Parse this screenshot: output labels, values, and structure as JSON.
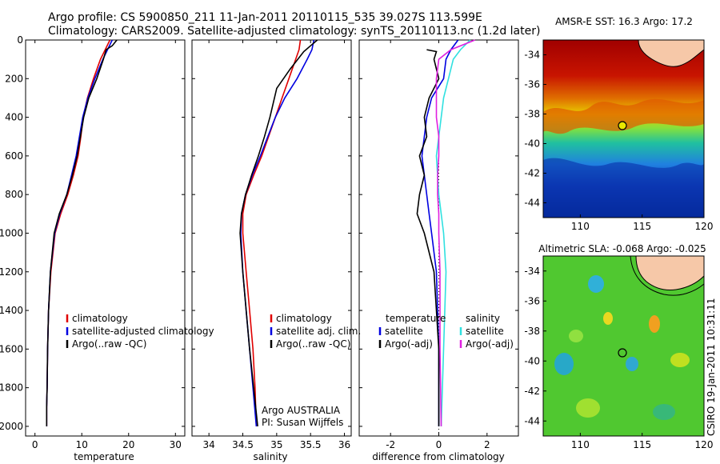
{
  "header": {
    "line1": "Argo profile: CS 5900850_211 11-Jan-2011 20110115_535 39.027S 113.599E",
    "line2": "Climatology: CARS2009. Satellite-adjusted climatology: synTS_20110113.nc (1.2d later)"
  },
  "side_label": "CSIRO 19-Jan-2011 10:31:11",
  "colors": {
    "red": "#e00000",
    "blue": "#0000e0",
    "black": "#000000",
    "cyan": "#30e0e0",
    "magenta": "#e020e0"
  },
  "chart_data": [
    {
      "type": "line",
      "id": "temperature",
      "xlabel": "temperature",
      "xlim": [
        -2,
        32
      ],
      "ylim": [
        0,
        2050
      ],
      "xticks": [
        0,
        10,
        20,
        30
      ],
      "yticks": [
        0,
        200,
        400,
        600,
        800,
        1000,
        1200,
        1400,
        1600,
        1800,
        2000
      ],
      "legend": [
        "climatology",
        "satellite-adjusted climatology",
        "Argo(..raw -QC)"
      ],
      "series": [
        {
          "name": "climatology",
          "color": "red",
          "x": [
            16,
            15,
            14,
            12.5,
            11.2,
            10.3,
            9.8,
            9.2,
            8.2,
            7,
            5.5,
            4.3,
            3.4,
            2.9,
            2.7,
            2.6,
            2.5,
            2.5
          ],
          "y": [
            0,
            50,
            100,
            200,
            300,
            400,
            500,
            600,
            700,
            800,
            900,
            1000,
            1200,
            1400,
            1600,
            1800,
            1900,
            2000
          ]
        },
        {
          "name": "satellite-adjusted climatology",
          "color": "blue",
          "x": [
            16.5,
            15.5,
            14.5,
            12.8,
            11.3,
            10.2,
            9.5,
            8.8,
            7.8,
            6.8,
            5.3,
            4.2,
            3.3,
            2.9,
            2.7,
            2.6,
            2.5,
            2.5
          ],
          "y": [
            0,
            50,
            100,
            200,
            300,
            400,
            500,
            600,
            700,
            800,
            900,
            1000,
            1200,
            1400,
            1600,
            1800,
            1900,
            2000
          ]
        },
        {
          "name": "Argo(..raw -QC)",
          "color": "black",
          "x": [
            17.5,
            16.5,
            15.2,
            14.6,
            13.2,
            11.5,
            10.4,
            9.7,
            9,
            8,
            6.8,
            5.2,
            4.1,
            3.3,
            2.9,
            2.7,
            2.6,
            2.5,
            2.5
          ],
          "y": [
            0,
            30,
            50,
            100,
            200,
            300,
            400,
            500,
            600,
            700,
            800,
            900,
            1000,
            1200,
            1400,
            1600,
            1800,
            1900,
            2000
          ]
        }
      ]
    },
    {
      "type": "line",
      "id": "salinity",
      "xlabel": "salinity",
      "xlim": [
        33.75,
        36.1
      ],
      "ylim": [
        0,
        2050
      ],
      "xticks": [
        34,
        34.5,
        35,
        35.5,
        36
      ],
      "legend": [
        "climatology",
        "satellite adj. clim.",
        "Argo(..raw -QC)"
      ],
      "annotation": [
        "Argo AUSTRALIA",
        "PI: Susan Wijffels"
      ],
      "series": [
        {
          "name": "climatology",
          "color": "red",
          "x": [
            35.35,
            35.33,
            35.28,
            35.18,
            35.08,
            34.98,
            34.88,
            34.78,
            34.66,
            34.55,
            34.5,
            34.5,
            34.55,
            34.6,
            34.65,
            34.68,
            34.7
          ],
          "y": [
            0,
            50,
            100,
            200,
            300,
            400,
            500,
            600,
            700,
            800,
            900,
            1000,
            1200,
            1400,
            1600,
            1800,
            2000
          ]
        },
        {
          "name": "satellite adj. clim.",
          "color": "blue",
          "x": [
            35.55,
            35.52,
            35.45,
            35.3,
            35.12,
            34.98,
            34.87,
            34.76,
            34.64,
            34.54,
            34.48,
            34.47,
            34.5,
            34.55,
            34.6,
            34.65,
            34.7
          ],
          "y": [
            0,
            50,
            100,
            200,
            300,
            400,
            500,
            600,
            700,
            800,
            900,
            1000,
            1200,
            1400,
            1600,
            1800,
            2000
          ]
        },
        {
          "name": "Argo(..raw -QC)",
          "color": "black",
          "x": [
            35.6,
            35.5,
            35.4,
            35.2,
            35,
            34.9,
            34.82,
            34.73,
            34.63,
            34.54,
            34.48,
            34.46,
            34.5,
            34.55,
            34.6,
            34.66,
            34.72
          ],
          "y": [
            0,
            30,
            60,
            150,
            250,
            400,
            500,
            600,
            700,
            800,
            900,
            1000,
            1200,
            1400,
            1600,
            1800,
            2000
          ]
        }
      ]
    },
    {
      "type": "line",
      "id": "difference",
      "xlabel": "difference from climatology",
      "xlim": [
        -3.3,
        3.3
      ],
      "ylim": [
        0,
        2050
      ],
      "xticks": [
        -2,
        0,
        2
      ],
      "legend": [
        "temperature",
        "satellite",
        "Argo(-adj)",
        "salinity",
        "satellite",
        "Argo(-adj)"
      ],
      "series": [
        {
          "name": "temperature satellite",
          "color": "blue",
          "x": [
            0.8,
            0.5,
            0.3,
            0.2,
            -0.3,
            -0.5,
            -0.6,
            -0.7,
            -0.6,
            -0.5,
            -0.4,
            -0.3,
            -0.1,
            0,
            0
          ],
          "y": [
            0,
            50,
            100,
            200,
            300,
            400,
            500,
            600,
            700,
            800,
            900,
            1000,
            1200,
            1600,
            2000
          ]
        },
        {
          "name": "temperature Argo(-adj)",
          "color": "black",
          "x": [
            -0.5,
            -0.1,
            -0.2,
            0,
            -0.4,
            -0.6,
            -0.5,
            -0.8,
            -0.6,
            -0.8,
            -0.9,
            -0.6,
            -0.2,
            0,
            0
          ],
          "y": [
            50,
            60,
            100,
            200,
            300,
            400,
            500,
            600,
            700,
            800,
            900,
            1000,
            1200,
            1600,
            2000
          ]
        },
        {
          "name": "salinity satellite",
          "color": "cyan",
          "x": [
            1.3,
            0.9,
            0.6,
            0.4,
            0.2,
            0.1,
            0,
            -0.1,
            -0.05,
            0,
            0.1,
            0.2,
            0.3,
            0.2,
            0.1
          ],
          "y": [
            0,
            50,
            100,
            200,
            300,
            400,
            500,
            600,
            700,
            800,
            900,
            1000,
            1200,
            1600,
            2000
          ]
        },
        {
          "name": "salinity Argo(-adj)",
          "color": "magenta",
          "x": [
            1.5,
            0.5,
            0,
            -0.1,
            -0.1,
            -0.1,
            0,
            0,
            -0.05,
            -0.05,
            0,
            0,
            0.05,
            0.05,
            0.1
          ],
          "y": [
            0,
            50,
            100,
            200,
            300,
            400,
            500,
            600,
            700,
            800,
            900,
            1000,
            1200,
            1600,
            2000
          ]
        }
      ]
    },
    {
      "type": "heatmap",
      "id": "sst",
      "title": "AMSR-E SST: 16.3 Argo: 17.2",
      "xlim": [
        107,
        120
      ],
      "ylim": [
        -45,
        -33
      ],
      "xticks": [
        110,
        115,
        120
      ],
      "yticks": [
        -34,
        -36,
        -38,
        -40,
        -42,
        -44
      ],
      "marker": [
        113.6,
        -39.03
      ]
    },
    {
      "type": "heatmap",
      "id": "sla",
      "title": "Altimetric SLA: -0.068 Argo: -0.025",
      "xlim": [
        107,
        120
      ],
      "ylim": [
        -45,
        -33
      ],
      "xticks": [
        110,
        115,
        120
      ],
      "yticks": [
        -34,
        -36,
        -38,
        -40,
        -42,
        -44
      ],
      "marker": [
        113.6,
        -39.03
      ]
    }
  ]
}
